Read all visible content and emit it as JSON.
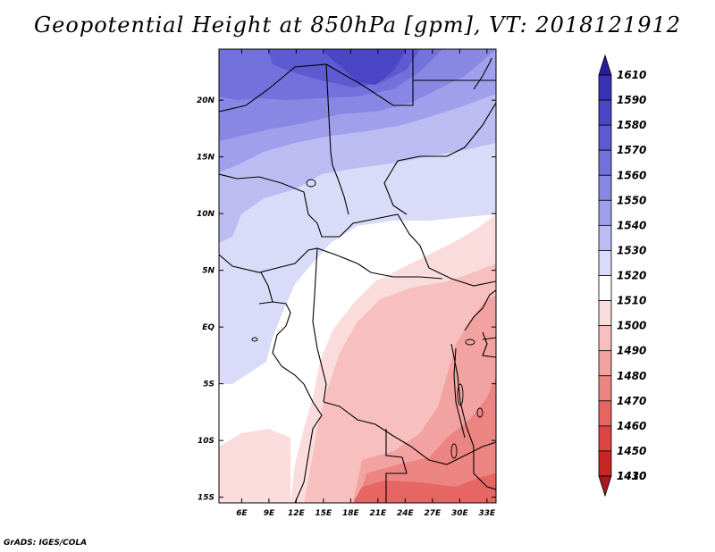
{
  "title": "Geopotential Height at 850hPa [gpm], VT: 2018121912",
  "credit": "GrADS: IGES/COLA",
  "map": {
    "lat_labels": [
      "20N",
      "15N",
      "10N",
      "5N",
      "EQ",
      "5S",
      "10S",
      "15S"
    ],
    "lon_labels": [
      "6E",
      "9E",
      "12E",
      "15E",
      "18E",
      "21E",
      "24E",
      "27E",
      "30E",
      "33E"
    ],
    "extent": {
      "lon_min": 3.5,
      "lon_max": 34,
      "lat_min": -15.5,
      "lat_max": 24.5
    }
  },
  "colorbar": {
    "levels": [
      "1610",
      "1590",
      "1580",
      "1570",
      "1560",
      "1550",
      "1540",
      "1530",
      "1520",
      "1510",
      "1500",
      "1490",
      "1480",
      "1470",
      "1460",
      "1450",
      "1430",
      "1410"
    ],
    "colors": [
      "#2a1a9e",
      "#3a32b4",
      "#4a46c6",
      "#5d5ad2",
      "#7371dc",
      "#8987e4",
      "#a09fec",
      "#bcbcf2",
      "#d9dbf8",
      "#ffffff",
      "#fbdcdc",
      "#f7c0bf",
      "#f2a3a1",
      "#ec8582",
      "#e56663",
      "#dd4544",
      "#c82525",
      "#a8181c"
    ]
  }
}
